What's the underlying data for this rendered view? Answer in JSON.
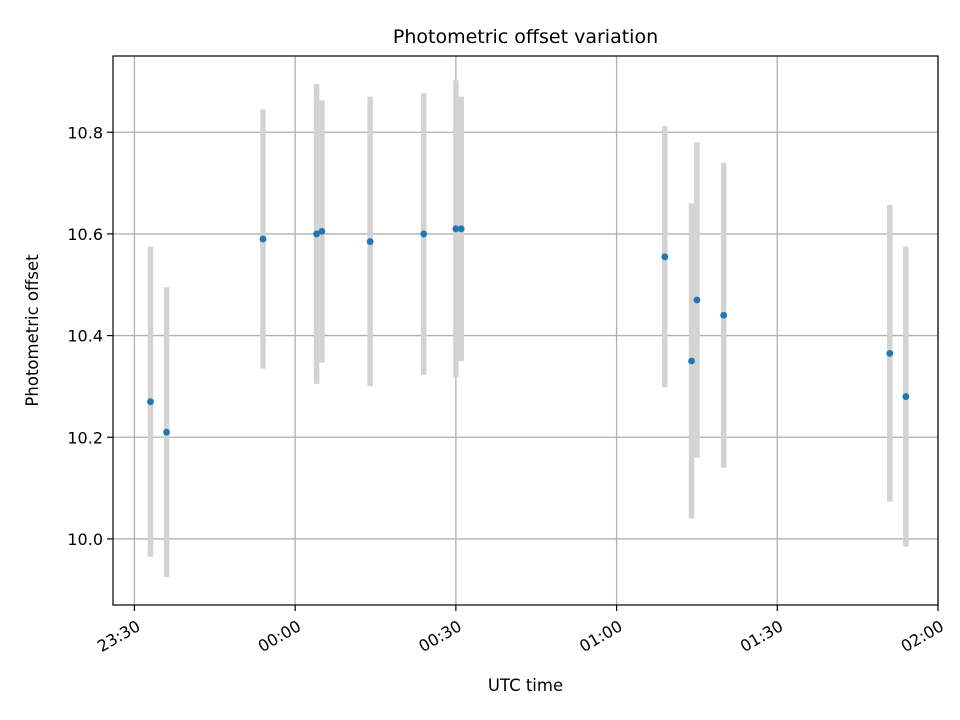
{
  "chart_data": {
    "type": "scatter",
    "title": "Photometric offset variation",
    "xlabel": "UTC time",
    "ylabel": "Photometric offset",
    "x_unit": "time of day, UTC (HH:MM, date rolls over after 00:00)",
    "xlim": [
      "23:26",
      "02:00"
    ],
    "ylim": [
      9.87,
      10.95
    ],
    "grid": true,
    "legend": "none",
    "x_ticks": [
      "23:30",
      "00:00",
      "00:30",
      "01:00",
      "01:30",
      "02:00"
    ],
    "y_ticks": [
      "10.0",
      "10.2",
      "10.4",
      "10.6",
      "10.8"
    ],
    "colors": {
      "marker": "#1f77b4",
      "errorbar": "#d3d3d3",
      "grid": "#b0b0b0"
    },
    "series": [
      {
        "points": [
          {
            "x": "23:33",
            "y": 10.27,
            "err": 0.305
          },
          {
            "x": "23:36",
            "y": 10.21,
            "err": 0.285
          },
          {
            "x": "23:54",
            "y": 10.59,
            "err": 0.255
          },
          {
            "x": "00:04",
            "y": 10.6,
            "err": 0.295
          },
          {
            "x": "00:05",
            "y": 10.605,
            "err": 0.258
          },
          {
            "x": "00:14",
            "y": 10.585,
            "err": 0.285
          },
          {
            "x": "00:24",
            "y": 10.6,
            "err": 0.277
          },
          {
            "x": "00:30",
            "y": 10.61,
            "err": 0.292
          },
          {
            "x": "00:31",
            "y": 10.61,
            "err": 0.26
          },
          {
            "x": "01:09",
            "y": 10.555,
            "err": 0.257
          },
          {
            "x": "01:14",
            "y": 10.35,
            "err": 0.31
          },
          {
            "x": "01:15",
            "y": 10.47,
            "err": 0.31
          },
          {
            "x": "01:20",
            "y": 10.44,
            "err": 0.3
          },
          {
            "x": "01:51",
            "y": 10.365,
            "err": 0.292
          },
          {
            "x": "01:54",
            "y": 10.28,
            "err": 0.295
          }
        ]
      }
    ]
  }
}
